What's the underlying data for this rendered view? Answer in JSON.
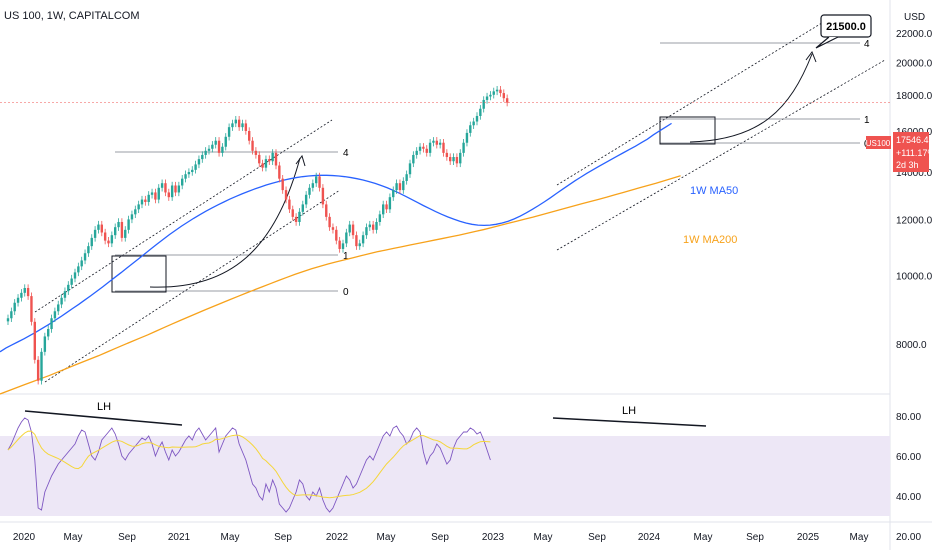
{
  "header": {
    "title": "US 100, 1W, CAPITALCOM"
  },
  "currency_label": "USD",
  "chart_data": {
    "type": "candlestick",
    "symbol": "US100",
    "interval": "1W",
    "source": "CAPITALCOM",
    "x_tick_labels": [
      "2020",
      "May",
      "Sep",
      "2021",
      "May",
      "Sep",
      "2022",
      "May",
      "Sep",
      "2023",
      "May",
      "Sep",
      "2024",
      "May",
      "Sep",
      "2025",
      "May"
    ],
    "price_axis": {
      "scale": "log",
      "ticks": [
        "22000.0",
        "20000.0",
        "18000.0",
        "16000.0",
        "14000.0",
        "12000.0",
        "10000.0",
        "8000.0"
      ],
      "range": [
        6800,
        24500
      ]
    },
    "rsi_axis": {
      "ticks": [
        "80.00",
        "60.00",
        "40.00",
        "20.00"
      ],
      "range": [
        20,
        90
      ],
      "band": [
        30,
        70
      ]
    },
    "last_price": {
      "symbol": "US100",
      "value": "17546.4",
      "change": "+111.17%",
      "countdown": "2d 3h",
      "price": 17546.4
    },
    "target": {
      "label": "21500.0",
      "price": 21500
    },
    "price_series_weekly_close": [
      8700,
      8900,
      9150,
      9300,
      9450,
      9600,
      9350,
      8600,
      7600,
      7100,
      7800,
      8200,
      8400,
      8700,
      8900,
      9100,
      9300,
      9500,
      9700,
      9900,
      10100,
      10300,
      10500,
      10750,
      11000,
      11300,
      11600,
      11800,
      11500,
      11200,
      11100,
      11400,
      11700,
      11900,
      11300,
      11600,
      12000,
      12200,
      12400,
      12600,
      12800,
      12700,
      13000,
      13100,
      12800,
      13300,
      13500,
      13100,
      12900,
      13400,
      13100,
      13400,
      13700,
      13900,
      14000,
      14100,
      14350,
      14600,
      14800,
      15000,
      15100,
      15300,
      15500,
      14900,
      15200,
      15700,
      16200,
      16400,
      16600,
      16200,
      16400,
      16000,
      15500,
      15000,
      14800,
      14400,
      14200,
      14600,
      14500,
      14900,
      14300,
      13700,
      13200,
      12800,
      12400,
      12100,
      11900,
      12300,
      12600,
      13000,
      13300,
      13500,
      13800,
      13300,
      12600,
      12100,
      11700,
      11600,
      11200,
      10900,
      11100,
      11500,
      11800,
      11400,
      11000,
      11100,
      11400,
      11700,
      11800,
      11600,
      11900,
      12200,
      12600,
      12400,
      12900,
      13200,
      13500,
      13200,
      13600,
      13900,
      14400,
      14800,
      15000,
      15200,
      15100,
      14900,
      15400,
      15500,
      15300,
      15400,
      14900,
      14700,
      14500,
      14700,
      14400,
      14900,
      15400,
      15900,
      16300,
      16500,
      16800,
      17200,
      17700,
      17900,
      18000,
      18200,
      18300,
      18100,
      17800,
      17546
    ],
    "ma50_weekly": [
      7800,
      7900,
      7980,
      8060,
      8140,
      8230,
      8320,
      8420,
      8520,
      8630,
      8740,
      8860,
      8980,
      9100,
      9230,
      9360,
      9500,
      9640,
      9790,
      9940,
      10090,
      10250,
      10410,
      10570,
      10740,
      10910,
      11080,
      11250,
      11420,
      11580,
      11740,
      11890,
      12040,
      12180,
      12320,
      12450,
      12580,
      12700,
      12820,
      12930,
      13040,
      13140,
      13240,
      13330,
      13420,
      13500,
      13570,
      13640,
      13700,
      13750,
      13790,
      13820,
      13840,
      13850,
      13850,
      13840,
      13820,
      13790,
      13750,
      13700,
      13640,
      13570,
      13490,
      13400,
      13300,
      13190,
      13070,
      12940,
      12810,
      12680,
      12550,
      12430,
      12310,
      12200,
      12100,
      12010,
      11930,
      11860,
      11810,
      11780,
      11770,
      11780,
      11810,
      11860,
      11930,
      12020,
      12130,
      12260,
      12400,
      12550,
      12710,
      12880,
      13060,
      13240,
      13420,
      13600,
      13770,
      13940,
      14100,
      14260,
      14420,
      14580,
      14740,
      14900,
      15060,
      15220,
      15400,
      15580,
      15800,
      16000,
      16200,
      16400
    ],
    "ma200_weekly": [
      6800,
      6870,
      6940,
      7010,
      7080,
      7150,
      7220,
      7300,
      7380,
      7460,
      7540,
      7620,
      7700,
      7790,
      7880,
      7970,
      8060,
      8150,
      8240,
      8340,
      8440,
      8540,
      8640,
      8740,
      8840,
      8940,
      9040,
      9140,
      9240,
      9340,
      9440,
      9540,
      9640,
      9740,
      9840,
      9940,
      10040,
      10130,
      10220,
      10300,
      10380,
      10450,
      10520,
      10590,
      10660,
      10730,
      10800,
      10860,
      10920,
      10980,
      11040,
      11100,
      11160,
      11220,
      11280,
      11340,
      11400,
      11470,
      11540,
      11610,
      11690,
      11770,
      11850,
      11930,
      12010,
      12090,
      12180,
      12270,
      12360,
      12450,
      12540,
      12630,
      12720,
      12810,
      12900,
      13000,
      13100,
      13200,
      13300,
      13400,
      13500,
      13610,
      13720,
      13830
    ],
    "rsi_weekly": [
      63,
      66,
      70,
      74,
      77,
      79,
      78,
      72,
      58,
      34,
      33,
      42,
      46,
      50,
      53,
      56,
      58,
      60,
      62,
      64,
      66,
      70,
      73,
      72,
      66,
      60,
      58,
      62,
      68,
      70,
      72,
      74,
      71,
      66,
      60,
      58,
      61,
      63,
      65,
      67,
      69,
      68,
      70,
      66,
      60,
      64,
      67,
      62,
      58,
      63,
      60,
      62,
      65,
      68,
      70,
      68,
      72,
      74,
      71,
      68,
      70,
      72,
      74,
      62,
      66,
      70,
      72,
      74,
      73,
      66,
      62,
      58,
      52,
      46,
      44,
      40,
      38,
      46,
      42,
      48,
      44,
      36,
      34,
      32,
      34,
      38,
      42,
      48,
      46,
      40,
      38,
      42,
      40,
      44,
      38,
      34,
      32,
      34,
      38,
      42,
      46,
      50,
      48,
      44,
      46,
      50,
      54,
      58,
      60,
      58,
      62,
      66,
      70,
      72,
      70,
      74,
      75,
      72,
      70,
      66,
      68,
      72,
      74,
      72,
      62,
      56,
      60,
      62,
      66,
      64,
      60,
      56,
      58,
      64,
      68,
      70,
      72,
      72,
      74,
      73,
      71,
      72,
      68,
      63,
      58
    ],
    "levels": [
      "0",
      "1",
      "4"
    ],
    "annotations": {
      "lh_label": "LH",
      "ma50_label": "1W MA50",
      "ma200_label": "1W MA200"
    },
    "colors": {
      "up": "#26a69a",
      "down": "#ef5350",
      "ma50": "#2962ff",
      "ma200": "#f7a21b",
      "rsi": "#7e57c2",
      "rsi_band": "#ede7f6",
      "rsi_ma": "#f5d63a"
    }
  }
}
